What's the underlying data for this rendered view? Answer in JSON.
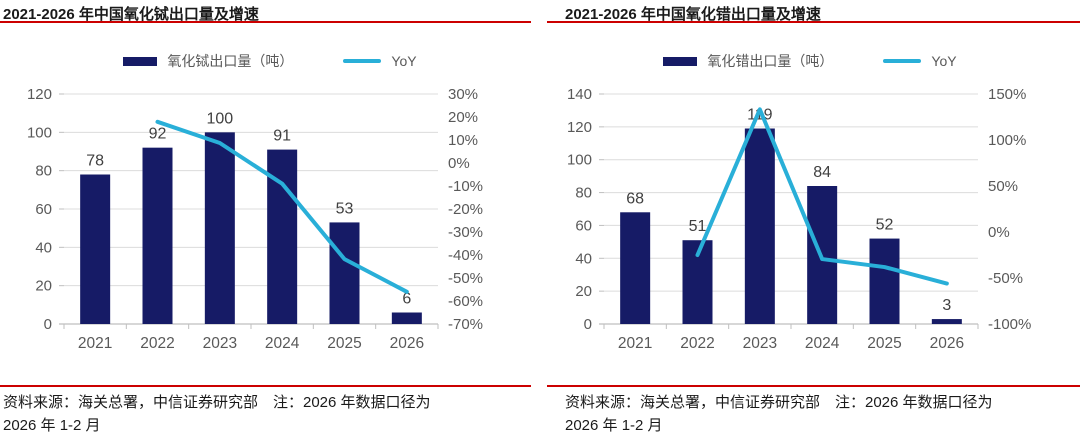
{
  "colors": {
    "bar": "#161b66",
    "line": "#29afd8",
    "rule_red": "#cc0000",
    "grid": "#dcdcdc",
    "axis": "#bfbfbf",
    "tick_text": "#595959",
    "data_label_text": "#404040",
    "title_text": "#1a1a1a"
  },
  "panels": [
    {
      "title": "2021-2026 年中国氧化铽出口量及增速",
      "legend": {
        "bar_label": "氧化铽出口量（吨）",
        "line_label": "YoY"
      },
      "footer_line1": "资料来源：海关总署，中信证券研究部　注：2026 年数据口径为",
      "footer_line2": "2026 年 1-2 月"
    },
    {
      "title": "2021-2026 年中国氧化错出口量及增速",
      "legend": {
        "bar_label": "氧化错出口量（吨）",
        "line_label": "YoY"
      },
      "footer_line1": "资料来源：海关总署，中信证券研究部　注：2026 年数据口径为",
      "footer_line2": "2026 年 1-2 月"
    }
  ],
  "chart_data": [
    {
      "type": "bar",
      "title": "2021-2026 年中国氧化铽出口量及增速",
      "categories": [
        "2021",
        "2022",
        "2023",
        "2024",
        "2025",
        "2026"
      ],
      "series": [
        {
          "name": "氧化铽出口量（吨）",
          "type": "bar",
          "axis": "left",
          "values": [
            78,
            92,
            100,
            91,
            53,
            6
          ]
        },
        {
          "name": "YoY",
          "type": "line",
          "axis": "right",
          "values_pct": [
            null,
            17.9,
            8.7,
            -9.0,
            -41.8,
            -56.0
          ]
        }
      ],
      "left_axis": {
        "min": 0,
        "max": 120,
        "step": 20
      },
      "right_axis": {
        "min": -70,
        "max": 30,
        "step": 10,
        "format": "percent"
      },
      "grid": true,
      "legend_position": "top"
    },
    {
      "type": "bar",
      "title": "2021-2026 年中国氧化错出口量及增速",
      "categories": [
        "2021",
        "2022",
        "2023",
        "2024",
        "2025",
        "2026"
      ],
      "series": [
        {
          "name": "氧化错出口量（吨）",
          "type": "bar",
          "axis": "left",
          "values": [
            68,
            51,
            119,
            84,
            52,
            3
          ]
        },
        {
          "name": "YoY",
          "type": "line",
          "axis": "right",
          "values_pct": [
            null,
            -25.0,
            133.3,
            -29.4,
            -38.1,
            -56.0
          ]
        }
      ],
      "left_axis": {
        "min": 0,
        "max": 140,
        "step": 20
      },
      "right_axis": {
        "min": -100,
        "max": 150,
        "step": 50,
        "format": "percent"
      },
      "grid": true,
      "legend_position": "top"
    }
  ]
}
